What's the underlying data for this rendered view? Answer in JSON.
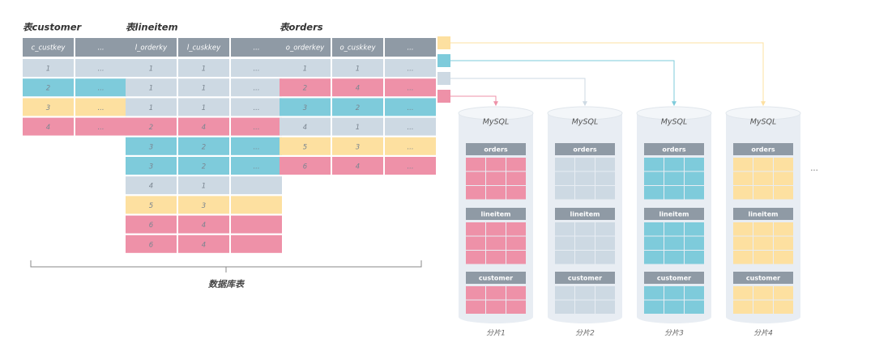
{
  "tables": [
    {
      "title": "表customer",
      "headers": [
        "c_custkey",
        "..."
      ],
      "rows": [
        {
          "color": "#cdd9e3",
          "cells": [
            "1",
            "..."
          ]
        },
        {
          "color": "#7ecbdb",
          "cells": [
            "2",
            "..."
          ]
        },
        {
          "color": "#fde0a0",
          "cells": [
            "3",
            "..."
          ]
        },
        {
          "color": "#ee91a8",
          "cells": [
            "4",
            "..."
          ]
        }
      ]
    },
    {
      "title": "表lineitem",
      "headers": [
        "l_orderky",
        "l_cuskkey",
        "..."
      ],
      "rows": [
        {
          "color": "#cdd9e3",
          "cells": [
            "1",
            "1",
            "..."
          ]
        },
        {
          "color": "#cdd9e3",
          "cells": [
            "1",
            "1",
            "..."
          ]
        },
        {
          "color": "#cdd9e3",
          "cells": [
            "1",
            "1",
            "..."
          ]
        },
        {
          "color": "#ee91a8",
          "cells": [
            "2",
            "4",
            "..."
          ]
        },
        {
          "color": "#7ecbdb",
          "cells": [
            "3",
            "2",
            "..."
          ]
        },
        {
          "color": "#7ecbdb",
          "cells": [
            "3",
            "2",
            "..."
          ]
        },
        {
          "color": "#cdd9e3",
          "cells": [
            "4",
            "1"
          ]
        },
        {
          "color": "#fde0a0",
          "cells": [
            "5",
            "3"
          ]
        },
        {
          "color": "#ee91a8",
          "cells": [
            "6",
            "4"
          ]
        },
        {
          "color": "#ee91a8",
          "cells": [
            "6",
            "4"
          ]
        }
      ]
    },
    {
      "title": "表orders",
      "headers": [
        "o_orderkey",
        "o_cuskkey",
        "..."
      ],
      "rows": [
        {
          "color": "#cdd9e3",
          "cells": [
            "1",
            "1",
            "..."
          ]
        },
        {
          "color": "#ee91a8",
          "cells": [
            "2",
            "4",
            "..."
          ]
        },
        {
          "color": "#7ecbdb",
          "cells": [
            "3",
            "2",
            "..."
          ]
        },
        {
          "color": "#cdd9e3",
          "cells": [
            "4",
            "1",
            "..."
          ]
        },
        {
          "color": "#fde0a0",
          "cells": [
            "5",
            "3",
            "..."
          ]
        },
        {
          "color": "#ee91a8",
          "cells": [
            "6",
            "4",
            "..."
          ]
        }
      ]
    }
  ],
  "brace_label": "数据库表",
  "shards": [
    {
      "engine": "MySQL",
      "label": "分片1",
      "color": "#ee91a8",
      "sections": [
        "orders",
        "lineitem",
        "customer"
      ]
    },
    {
      "engine": "MySQL",
      "label": "分片2",
      "color": "#cdd9e3",
      "sections": [
        "orders",
        "lineitem",
        "customer"
      ]
    },
    {
      "engine": "MySQL",
      "label": "分片3",
      "color": "#7ecbdb",
      "sections": [
        "orders",
        "lineitem",
        "customer"
      ]
    },
    {
      "engine": "MySQL",
      "label": "分片4",
      "color": "#fde0a0",
      "sections": [
        "orders",
        "lineitem",
        "customer"
      ]
    }
  ],
  "more": "..."
}
